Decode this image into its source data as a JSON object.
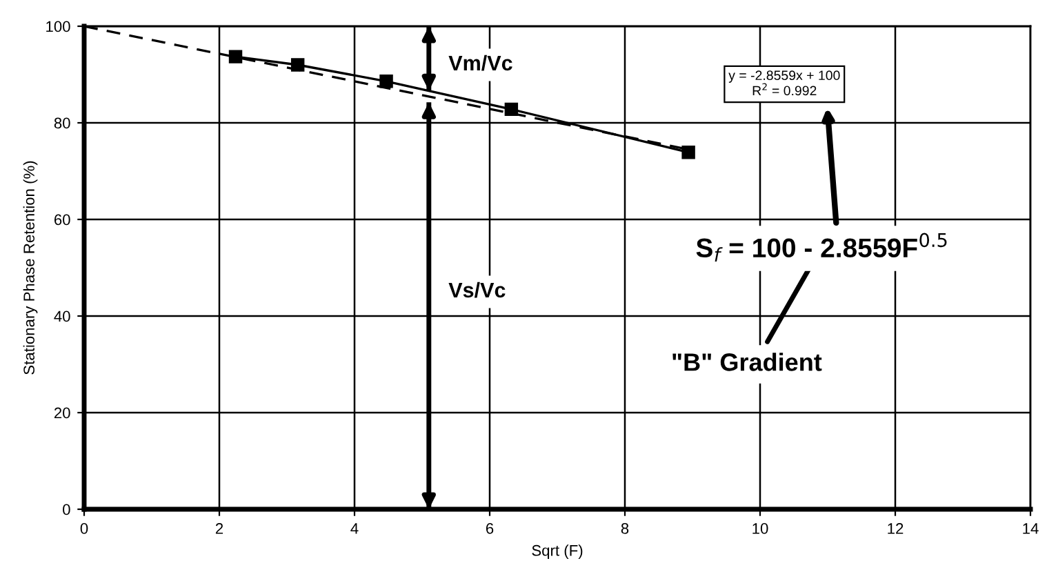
{
  "chart_data": {
    "type": "line",
    "ref_lines": [
      {
        "axis": "x",
        "value": 5.1,
        "color": "#000000"
      }
    ],
    "xlabel": "Sqrt (F)",
    "ylabel": "Stationary Phase Retention (%)",
    "xlim": [
      0,
      14
    ],
    "ylim": [
      0,
      100
    ],
    "xticks": [
      0,
      2,
      4,
      6,
      8,
      10,
      12,
      14
    ],
    "yticks": [
      0,
      20,
      40,
      60,
      80,
      100
    ],
    "grid": true,
    "series": [
      {
        "color": "#000000",
        "marker": "square",
        "line_style": "solid",
        "x": [
          2.24,
          3.16,
          4.47,
          6.32,
          8.94
        ],
        "values": [
          93.7,
          92.0,
          88.6,
          82.8,
          73.9
        ]
      },
      {
        "color": "#000000",
        "marker": "none",
        "line_style": "dashed",
        "x": [
          0,
          8.94
        ],
        "values": [
          100,
          74.5
        ]
      }
    ],
    "annotations": [
      "Vm/Vc",
      "Vs/Vc",
      "y = -2.8559x + 100\nR$^{2}$ = 0.992",
      "S$_{f}$ = 100 - 2.8559F$^{0.5}$",
      "\"B\" Gradient"
    ]
  }
}
